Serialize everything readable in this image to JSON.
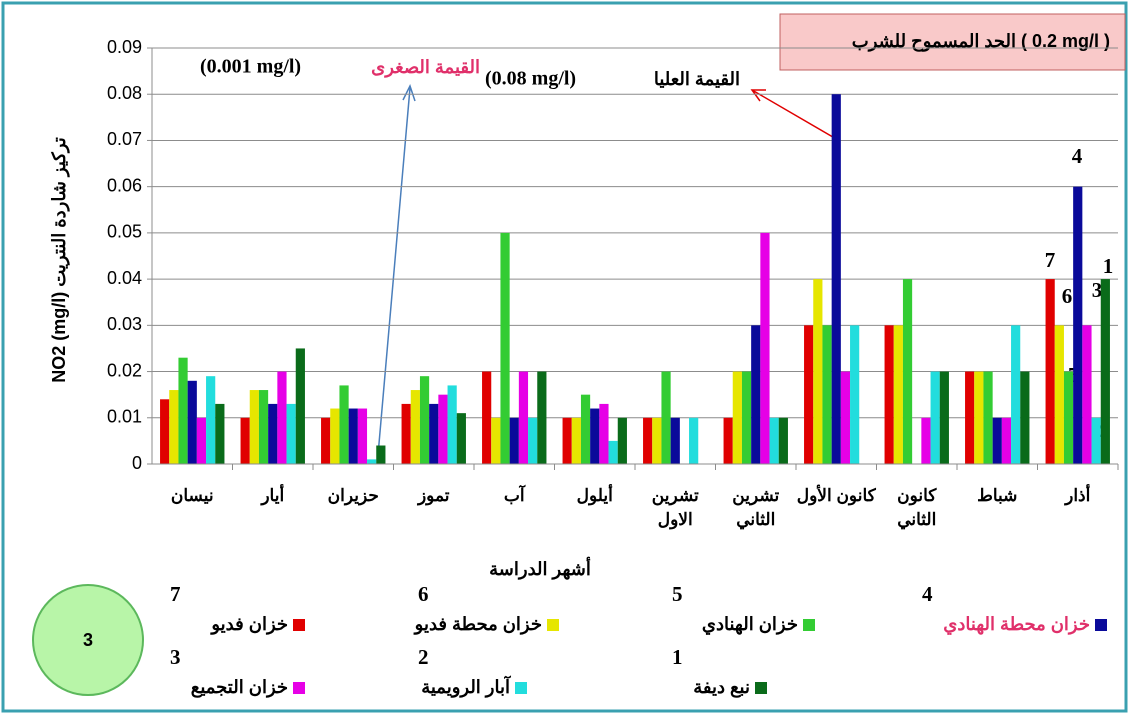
{
  "chart_data": {
    "type": "bar",
    "title": "الحد المسموح للشرب ( 0.2 mg/l )",
    "y_axis_label": "NO2 (mg/l)  تركيز شاردة النتريت",
    "x_axis_label": "أشهر الدراسة",
    "annotations": {
      "min_value": "(0.001 mg/l)",
      "min_label": "القيمة الصغرى",
      "max_value": "(0.08 mg/l)",
      "max_label": "القيمة العليا",
      "badge": "3",
      "bar_numbers": [
        "7",
        "6",
        "5",
        "4",
        "3",
        "2",
        "1"
      ]
    },
    "categories": [
      "نيسان",
      "أيار",
      "حزيران",
      "تموز",
      "آب",
      "أيلول",
      "تشرين الاول",
      "تشرين الثاني",
      "كانون الأول",
      "كانون الثاني",
      "شباط",
      "أذار"
    ],
    "series": [
      {
        "name": "خزان فديو",
        "number": "7",
        "color": "#e00000",
        "values": [
          0.014,
          0.01,
          0.01,
          0.013,
          0.02,
          0.01,
          0.01,
          0.01,
          0.03,
          0.03,
          0.02,
          0.04
        ]
      },
      {
        "name": "خزان محطة فديو",
        "number": "6",
        "color": "#e6e600",
        "values": [
          0.016,
          0.016,
          0.012,
          0.016,
          0.01,
          0.01,
          0.01,
          0.02,
          0.04,
          0.03,
          0.02,
          0.03
        ]
      },
      {
        "name": "خزان الهنادي",
        "number": "5",
        "color": "#33cc33",
        "values": [
          0.023,
          0.016,
          0.017,
          0.019,
          0.05,
          0.015,
          0.02,
          0.02,
          0.03,
          0.04,
          0.02,
          0.02
        ]
      },
      {
        "name": "خزان محطة الهنادي",
        "number": "4",
        "color": "#0a0a9a",
        "values": [
          0.018,
          0.013,
          0.012,
          0.013,
          0.01,
          0.012,
          0.01,
          0.03,
          0.08,
          null,
          0.01,
          0.06
        ]
      },
      {
        "name": "خزان التجميع",
        "number": "3",
        "color": "#e600e6",
        "values": [
          0.01,
          0.02,
          0.012,
          0.015,
          0.02,
          0.013,
          null,
          0.05,
          0.02,
          0.01,
          0.01,
          0.03
        ]
      },
      {
        "name": "آبار الرويمية",
        "number": "2",
        "color": "#22dddd",
        "values": [
          0.019,
          0.013,
          0.001,
          0.017,
          0.01,
          0.005,
          0.01,
          0.01,
          0.03,
          0.02,
          0.03,
          0.01
        ]
      },
      {
        "name": "نبع ديفة",
        "number": "1",
        "color": "#0a6b1a",
        "values": [
          0.013,
          0.025,
          0.004,
          0.011,
          0.02,
          0.01,
          null,
          0.01,
          null,
          0.02,
          0.02,
          0.04
        ]
      }
    ],
    "ylim": [
      0,
      0.09
    ],
    "yticks": [
      0,
      0.01,
      0.02,
      0.03,
      0.04,
      0.05,
      0.06,
      0.07,
      0.08,
      0.09
    ],
    "grid": true
  }
}
